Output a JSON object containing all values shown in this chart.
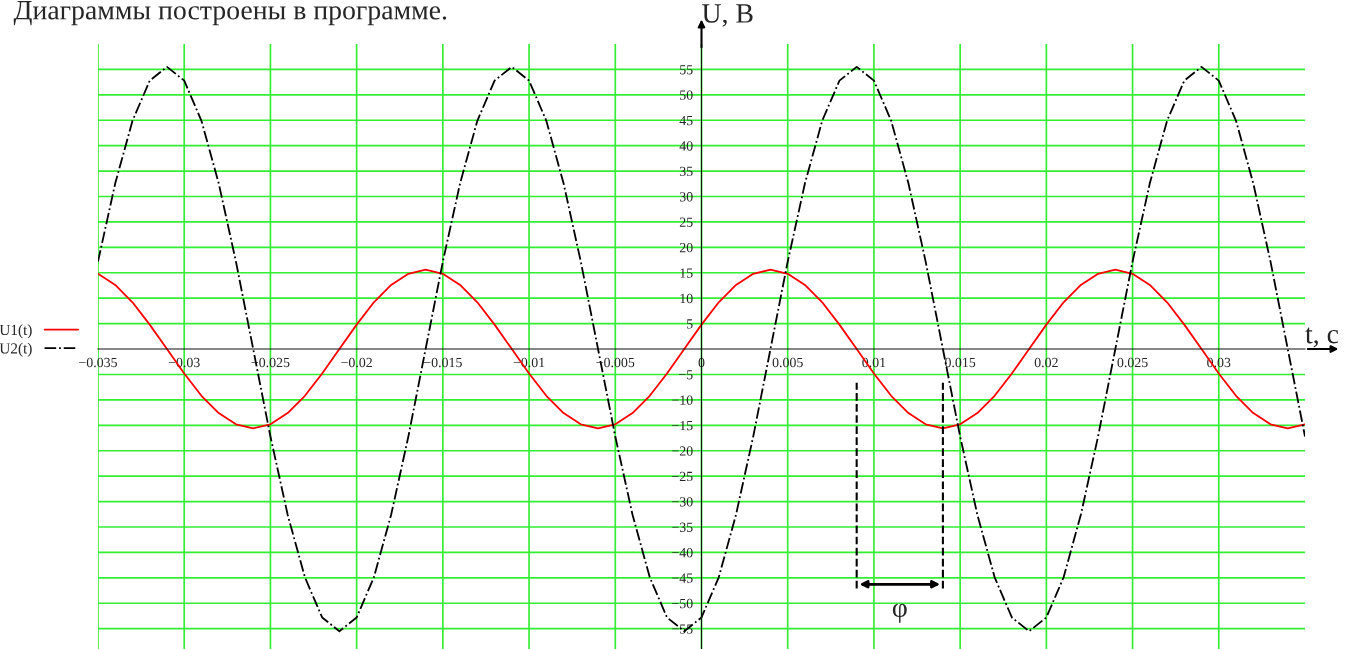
{
  "chart_data": {
    "type": "line",
    "title": "Диаграммы построены в программе.",
    "xlabel": "t, с",
    "ylabel": "U, В",
    "x": [
      -0.035,
      -0.034,
      -0.033,
      -0.032,
      -0.031,
      -0.03,
      -0.029,
      -0.028,
      -0.027,
      -0.026,
      -0.025,
      -0.024,
      -0.023,
      -0.022,
      -0.021,
      -0.02,
      -0.019,
      -0.018,
      -0.017,
      -0.016,
      -0.015,
      -0.014,
      -0.013,
      -0.012,
      -0.011,
      -0.01,
      -0.009,
      -0.008,
      -0.007,
      -0.006,
      -0.005,
      -0.004,
      -0.003,
      -0.002,
      -0.001,
      0,
      0.001,
      0.002,
      0.003,
      0.004,
      0.005,
      0.006,
      0.007,
      0.008,
      0.009,
      0.01,
      0.011,
      0.012,
      0.013,
      0.014,
      0.015,
      0.016,
      0.017,
      0.018,
      0.019,
      0.02,
      0.021,
      0.022,
      0.023,
      0.024,
      0.025,
      0.026,
      0.027,
      0.028,
      0.029,
      0.03,
      0.031,
      0.032,
      0.033,
      0.034,
      0.035
    ],
    "series": [
      {
        "name": "U1(t)",
        "color": "#ff0000",
        "line_style": "solid",
        "values": [
          14.8,
          12.6,
          9.2,
          4.8,
          0,
          -4.8,
          -9.2,
          -12.6,
          -14.8,
          -15.6,
          -14.8,
          -12.6,
          -9.2,
          -4.8,
          0,
          4.8,
          9.2,
          12.6,
          14.8,
          15.6,
          14.8,
          12.6,
          9.2,
          4.8,
          0,
          -4.8,
          -9.2,
          -12.6,
          -14.8,
          -15.6,
          -14.8,
          -12.6,
          -9.2,
          -4.8,
          0,
          4.8,
          9.2,
          12.6,
          14.8,
          15.6,
          14.8,
          12.6,
          9.2,
          4.8,
          0,
          -4.8,
          -9.2,
          -12.6,
          -14.8,
          -15.6,
          -14.8,
          -12.6,
          -9.2,
          -4.8,
          0,
          4.8,
          9.2,
          12.6,
          14.8,
          15.6,
          14.8,
          12.6,
          9.2,
          4.8,
          0,
          -4.8,
          -9.2,
          -12.6,
          -14.8,
          -15.6,
          -14.8
        ]
      },
      {
        "name": "U2(t)",
        "color": "#000000",
        "line_style": "dashdot",
        "values": [
          17.2,
          32.6,
          44.9,
          52.8,
          55.5,
          52.8,
          44.9,
          32.6,
          17.2,
          0,
          -17.2,
          -32.6,
          -44.9,
          -52.8,
          -55.5,
          -52.8,
          -44.9,
          -32.6,
          -17.2,
          0,
          17.2,
          32.6,
          44.9,
          52.8,
          55.5,
          52.8,
          44.9,
          32.6,
          17.2,
          0,
          -17.2,
          -32.6,
          -44.9,
          -52.8,
          -55.5,
          -52.8,
          -44.9,
          -32.6,
          -17.2,
          0,
          17.2,
          32.6,
          44.9,
          52.8,
          55.5,
          52.8,
          44.9,
          32.6,
          17.2,
          0,
          -17.2,
          -32.6,
          -44.9,
          -52.8,
          -55.5,
          -52.8,
          -44.9,
          -32.6,
          -17.2,
          0,
          17.2,
          32.6,
          44.9,
          52.8,
          55.5,
          52.8,
          44.9,
          32.6,
          17.2,
          0,
          -17.2
        ]
      }
    ],
    "xlim": [
      -0.035,
      0.035
    ],
    "xticks": [
      {
        "value": -0.035,
        "label": "−0.035"
      },
      {
        "value": -0.03,
        "label": "−0.03"
      },
      {
        "value": -0.025,
        "label": "−0.025"
      },
      {
        "value": -0.02,
        "label": "−0.02"
      },
      {
        "value": -0.015,
        "label": "−0.015"
      },
      {
        "value": -0.01,
        "label": "−0.01"
      },
      {
        "value": -0.005,
        "label": "−0.005"
      },
      0,
      0.005,
      0.01,
      0.015,
      0.02,
      0.025,
      0.03
    ],
    "ylim": [
      -59,
      60
    ],
    "yticks": [
      {
        "value": -55,
        "label": "−55"
      },
      {
        "value": -50,
        "label": "−50"
      },
      {
        "value": -45,
        "label": "−45"
      },
      {
        "value": -40,
        "label": "−40"
      },
      {
        "value": -35,
        "label": "−35"
      },
      {
        "value": -30,
        "label": "−30"
      },
      {
        "value": -25,
        "label": "−25"
      },
      {
        "value": -20,
        "label": "−20"
      },
      {
        "value": -15,
        "label": "−15"
      },
      {
        "value": -10,
        "label": "−10"
      },
      {
        "value": -5,
        "label": "−5"
      },
      5,
      10,
      15,
      20,
      25,
      30,
      35,
      40,
      45,
      50,
      55
    ],
    "ref_lines": [
      {
        "axis": "x",
        "value": 0.009,
        "line_style": "dashed",
        "color": "#000000"
      },
      {
        "axis": "x",
        "value": 0.014,
        "line_style": "dashed",
        "color": "#000000"
      }
    ],
    "annotations": [
      "φ"
    ],
    "grid": true,
    "legend": "left"
  }
}
